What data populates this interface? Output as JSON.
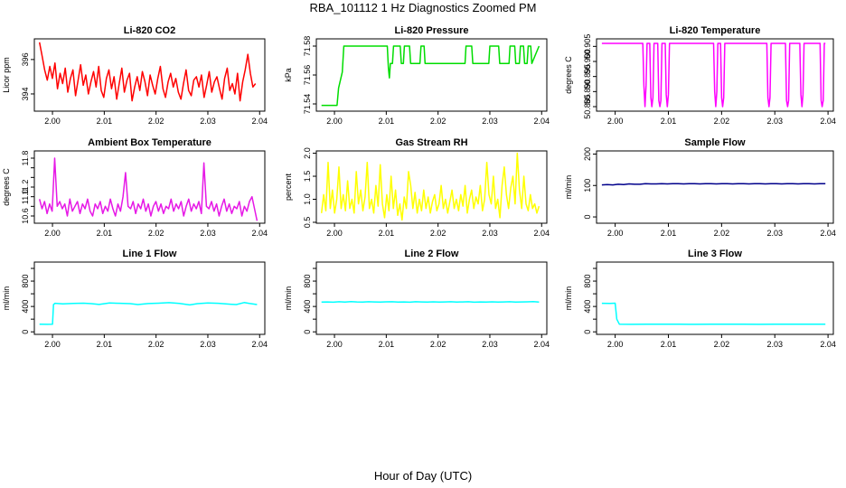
{
  "figure": {
    "title": "RBA_101112  1 Hz Diagnostics Zoomed PM",
    "xlabel": "Hour of Day (UTC)"
  },
  "chart_data": [
    {
      "type": "line",
      "title": "Li-820 CO2",
      "ylabel": "Licor ppm",
      "color": "#ff0000",
      "xlim": [
        1.9965,
        2.041
      ],
      "ylim": [
        393.0,
        397.2
      ],
      "xticks": [
        2.0,
        2.01,
        2.02,
        2.03,
        2.04
      ],
      "xtick_labels": [
        "2.00",
        "2.01",
        "2.02",
        "2.03",
        "2.04"
      ],
      "yticks": [
        394,
        396
      ],
      "ytick_labels": [
        "394",
        "396"
      ],
      "x_start": 1.9975,
      "x_end": 2.0392,
      "y": [
        397.0,
        396.2,
        395.4,
        394.8,
        395.6,
        394.9,
        395.8,
        394.3,
        395.2,
        394.6,
        395.5,
        394.1,
        394.9,
        395.4,
        393.9,
        394.8,
        395.7,
        394.5,
        395.1,
        394.0,
        394.7,
        395.3,
        394.4,
        395.6,
        394.2,
        393.8,
        394.9,
        395.4,
        394.3,
        395.0,
        393.7,
        394.6,
        395.5,
        394.1,
        394.8,
        395.2,
        393.6,
        394.4,
        395.0,
        394.2,
        395.3,
        394.7,
        393.9,
        395.1,
        394.5,
        394.0,
        394.9,
        395.6,
        394.3,
        393.8,
        394.7,
        395.2,
        394.4,
        394.9,
        394.1,
        393.7,
        394.6,
        395.4,
        394.2,
        393.9,
        394.8,
        395.0,
        394.4,
        395.1,
        393.8,
        394.5,
        395.3,
        394.1,
        394.7,
        395.0,
        394.3,
        393.7,
        394.9,
        395.5,
        394.2,
        394.6,
        394.0,
        395.2,
        393.6,
        394.7,
        395.4,
        396.3,
        395.2,
        394.4,
        394.6
      ]
    },
    {
      "type": "line",
      "title": "Li-820 Pressure",
      "ylabel": "kPa",
      "color": "#00dd00",
      "xlim": [
        1.9965,
        2.041
      ],
      "ylim": [
        71.535,
        71.585
      ],
      "xticks": [
        2.0,
        2.01,
        2.02,
        2.03,
        2.04
      ],
      "xtick_labels": [
        "2.00",
        "2.01",
        "2.02",
        "2.03",
        "2.04"
      ],
      "yticks": [
        71.54,
        71.56,
        71.58
      ],
      "ytick_labels": [
        "71.54",
        "71.56",
        "71.58"
      ],
      "x": [
        1.9975,
        2.0005,
        2.0008,
        2.0015,
        2.0018,
        2.0102,
        2.0104,
        2.0106,
        2.0108,
        2.0112,
        2.0114,
        2.0127,
        2.0129,
        2.0133,
        2.0135,
        2.0145,
        2.0147,
        2.0165,
        2.0167,
        2.0173,
        2.0175,
        2.0252,
        2.0254,
        2.0265,
        2.0267,
        2.0298,
        2.03,
        2.0317,
        2.0319,
        2.0337,
        2.0339,
        2.0348,
        2.035,
        2.0357,
        2.0359,
        2.0365,
        2.0367,
        2.0372,
        2.0374,
        2.0379,
        2.0381,
        2.0395
      ],
      "y": [
        71.539,
        71.539,
        71.551,
        71.562,
        71.58,
        71.58,
        71.565,
        71.558,
        71.568,
        71.568,
        71.58,
        71.58,
        71.568,
        71.568,
        71.58,
        71.58,
        71.568,
        71.568,
        71.58,
        71.58,
        71.568,
        71.568,
        71.58,
        71.58,
        71.568,
        71.568,
        71.58,
        71.58,
        71.568,
        71.568,
        71.58,
        71.58,
        71.568,
        71.568,
        71.58,
        71.58,
        71.568,
        71.568,
        71.58,
        71.58,
        71.568,
        71.58
      ]
    },
    {
      "type": "line",
      "title": "Li-820 Temperature",
      "ylabel": "degrees C",
      "color": "#ff00ff",
      "xlim": [
        1.9965,
        2.041
      ],
      "ylim": [
        50.8835,
        50.9075
      ],
      "xticks": [
        2.0,
        2.01,
        2.02,
        2.03,
        2.04
      ],
      "xtick_labels": [
        "2.00",
        "2.01",
        "2.02",
        "2.03",
        "2.04"
      ],
      "yticks": [
        50.885,
        50.89,
        50.895,
        50.9,
        50.905
      ],
      "ytick_labels": [
        "50.885",
        "50.890",
        "50.895",
        "50.900",
        "50.905"
      ],
      "x": [
        1.9975,
        2.0052,
        2.0054,
        2.0056,
        2.0058,
        2.006,
        2.0062,
        2.0065,
        2.0067,
        2.0069,
        2.0071,
        2.0073,
        2.0075,
        2.008,
        2.0082,
        2.0084,
        2.0086,
        2.0088,
        2.009,
        2.0094,
        2.0096,
        2.0098,
        2.01,
        2.0102,
        2.0104,
        2.0185,
        2.0187,
        2.0189,
        2.0191,
        2.0193,
        2.0195,
        2.0198,
        2.02,
        2.0202,
        2.0204,
        2.0206,
        2.0208,
        2.0285,
        2.0287,
        2.0289,
        2.0291,
        2.0293,
        2.0295,
        2.032,
        2.0322,
        2.0324,
        2.0326,
        2.0328,
        2.033,
        2.0347,
        2.0349,
        2.0351,
        2.0353,
        2.0355,
        2.0357,
        2.0385,
        2.0387,
        2.0389,
        2.0391,
        2.0393,
        2.0395
      ],
      "y": [
        50.906,
        50.906,
        50.892,
        50.885,
        50.892,
        50.906,
        50.906,
        50.906,
        50.888,
        50.885,
        50.888,
        50.906,
        50.906,
        50.906,
        50.887,
        50.885,
        50.887,
        50.906,
        50.906,
        50.906,
        50.889,
        50.885,
        50.889,
        50.906,
        50.906,
        50.906,
        50.89,
        50.885,
        50.89,
        50.906,
        50.906,
        50.906,
        50.888,
        50.885,
        50.888,
        50.906,
        50.906,
        50.906,
        50.888,
        50.885,
        50.888,
        50.906,
        50.906,
        50.906,
        50.887,
        50.885,
        50.887,
        50.906,
        50.906,
        50.906,
        50.889,
        50.885,
        50.889,
        50.906,
        50.906,
        50.906,
        50.887,
        50.885,
        50.887,
        50.906,
        50.906
      ]
    },
    {
      "type": "line",
      "title": "Ambient Box Temperature",
      "ylabel": "degrees C",
      "color": "#e619e6",
      "xlim": [
        1.9965,
        2.041
      ],
      "ylim": [
        10.45,
        11.95
      ],
      "xticks": [
        2.0,
        2.01,
        2.02,
        2.03,
        2.04
      ],
      "xtick_labels": [
        "2.00",
        "2.01",
        "2.02",
        "2.03",
        "2.04"
      ],
      "yticks": [
        10.6,
        10.8,
        11.0,
        11.2,
        11.4,
        11.6,
        11.8
      ],
      "ytick_labels": [
        "10.6",
        "",
        "11.0",
        "11.2",
        "",
        "",
        "11.8"
      ],
      "x_start": 1.9975,
      "x_end": 2.0395,
      "y": [
        10.95,
        10.75,
        10.9,
        10.65,
        10.85,
        10.7,
        11.8,
        10.8,
        10.9,
        10.75,
        10.85,
        10.6,
        10.95,
        10.7,
        10.8,
        10.9,
        10.65,
        10.85,
        10.75,
        10.95,
        10.7,
        10.6,
        10.85,
        10.75,
        10.9,
        10.65,
        10.8,
        10.7,
        10.95,
        10.75,
        10.6,
        10.85,
        10.7,
        11.0,
        11.5,
        10.8,
        10.75,
        10.9,
        10.65,
        10.85,
        10.75,
        10.95,
        10.7,
        10.85,
        10.6,
        10.8,
        10.9,
        10.7,
        10.85,
        10.65,
        10.8,
        10.75,
        10.95,
        10.7,
        10.85,
        10.75,
        10.9,
        10.6,
        10.8,
        10.95,
        10.7,
        10.85,
        10.75,
        10.9,
        10.65,
        11.7,
        10.8,
        10.75,
        10.9,
        10.7,
        10.85,
        10.6,
        10.8,
        10.95,
        10.7,
        10.85,
        10.65,
        10.8,
        10.75,
        10.9,
        10.6,
        10.8,
        10.7,
        10.9,
        11.0,
        10.75,
        10.5
      ]
    },
    {
      "type": "line",
      "title": "Gas Stream RH",
      "ylabel": "percent",
      "color": "#ffff00",
      "xlim": [
        1.9965,
        2.041
      ],
      "ylim": [
        0.48,
        2.05
      ],
      "xticks": [
        2.0,
        2.01,
        2.02,
        2.03,
        2.04
      ],
      "xtick_labels": [
        "2.00",
        "2.01",
        "2.02",
        "2.03",
        "2.04"
      ],
      "yticks": [
        0.5,
        1.0,
        1.5,
        2.0
      ],
      "ytick_labels": [
        "0.5",
        "1.0",
        "1.5",
        "2.0"
      ],
      "x_start": 1.9975,
      "x_end": 2.0395,
      "y": [
        0.7,
        1.1,
        0.75,
        1.8,
        0.8,
        1.2,
        0.7,
        1.0,
        1.7,
        0.8,
        1.1,
        0.75,
        1.4,
        0.8,
        1.0,
        0.7,
        1.6,
        0.9,
        1.2,
        0.75,
        1.05,
        1.8,
        0.8,
        1.0,
        0.7,
        1.3,
        0.85,
        1.75,
        0.9,
        0.6,
        1.1,
        0.75,
        1.5,
        0.8,
        1.2,
        0.65,
        0.9,
        0.55,
        1.05,
        0.8,
        1.6,
        1.3,
        0.8,
        1.15,
        0.7,
        1.0,
        0.75,
        1.2,
        0.8,
        1.05,
        0.7,
        0.95,
        1.1,
        0.75,
        0.9,
        1.3,
        0.8,
        1.0,
        0.7,
        0.95,
        1.2,
        0.8,
        1.0,
        0.75,
        1.1,
        0.85,
        1.3,
        0.7,
        1.0,
        1.2,
        0.8,
        1.05,
        0.9,
        1.3,
        0.75,
        1.0,
        1.8,
        1.1,
        0.9,
        1.5,
        0.8,
        1.0,
        0.6,
        1.3,
        1.7,
        1.1,
        0.8,
        1.25,
        1.5,
        0.9,
        2.0,
        1.2,
        0.8,
        1.5,
        0.9,
        0.75,
        1.1,
        0.8,
        0.9,
        0.7,
        0.85
      ]
    },
    {
      "type": "line",
      "title": "Sample Flow",
      "ylabel": "ml/min",
      "color": "#00008b",
      "xlim": [
        1.9965,
        2.041
      ],
      "ylim": [
        -20,
        210
      ],
      "xticks": [
        2.0,
        2.01,
        2.02,
        2.03,
        2.04
      ],
      "xtick_labels": [
        "2.00",
        "2.01",
        "2.02",
        "2.03",
        "2.04"
      ],
      "yticks": [
        0,
        100,
        200
      ],
      "ytick_labels": [
        "0",
        "100",
        "200"
      ],
      "x_start": 1.9975,
      "x_end": 2.0395,
      "y": [
        102,
        103,
        102,
        104,
        103,
        105,
        104,
        104,
        106,
        105,
        105,
        106,
        105,
        106,
        106,
        105,
        106,
        106,
        105,
        106,
        106,
        105,
        106,
        106,
        105,
        106,
        106,
        105,
        106,
        106,
        105,
        106,
        106,
        105,
        106,
        106,
        105,
        106,
        106,
        105,
        106,
        106
      ]
    },
    {
      "type": "line",
      "title": "Line 1 Flow",
      "ylabel": "ml/min",
      "color": "#00ffff",
      "xlim": [
        1.9965,
        2.041
      ],
      "ylim": [
        -40,
        1100
      ],
      "xticks": [
        2.0,
        2.01,
        2.02,
        2.03,
        2.04
      ],
      "xtick_labels": [
        "2.00",
        "2.01",
        "2.02",
        "2.03",
        "2.04"
      ],
      "yticks": [
        0,
        200,
        400,
        600,
        800,
        1000
      ],
      "ytick_labels": [
        "0",
        "",
        "400",
        "",
        "800",
        ""
      ],
      "x": [
        1.9975,
        1.999,
        2.0,
        2.0002,
        2.0005,
        2.002,
        2.004,
        2.006,
        2.0075,
        2.009,
        2.011,
        2.013,
        2.015,
        2.0165,
        2.0185,
        2.0205,
        2.0225,
        2.0245,
        2.0265,
        2.028,
        2.03,
        2.032,
        2.034,
        2.0355,
        2.037,
        2.038,
        2.0395
      ],
      "y": [
        120,
        118,
        120,
        430,
        450,
        440,
        448,
        452,
        445,
        432,
        455,
        450,
        445,
        430,
        446,
        452,
        460,
        448,
        425,
        445,
        455,
        450,
        438,
        430,
        462,
        448,
        430
      ]
    },
    {
      "type": "line",
      "title": "Line 2 Flow",
      "ylabel": "ml/min",
      "color": "#00ffff",
      "xlim": [
        1.9965,
        2.041
      ],
      "ylim": [
        -40,
        1100
      ],
      "xticks": [
        2.0,
        2.01,
        2.02,
        2.03,
        2.04
      ],
      "xtick_labels": [
        "2.00",
        "2.01",
        "2.02",
        "2.03",
        "2.04"
      ],
      "yticks": [
        0,
        200,
        400,
        600,
        800,
        1000
      ],
      "ytick_labels": [
        "0",
        "",
        "400",
        "",
        "800",
        ""
      ],
      "x_start": 1.9975,
      "x_end": 2.0395,
      "y": [
        470,
        472,
        468,
        474,
        470,
        476,
        472,
        470,
        474,
        471,
        469,
        473,
        475,
        470,
        472,
        468,
        474,
        471,
        470,
        473,
        469,
        472,
        475,
        470,
        471,
        474,
        468,
        472,
        470,
        473,
        469,
        472,
        474,
        470,
        471,
        473,
        476,
        470
      ]
    },
    {
      "type": "line",
      "title": "Line 3 Flow",
      "ylabel": "ml/min",
      "color": "#00ffff",
      "xlim": [
        1.9965,
        2.041
      ],
      "ylim": [
        -40,
        1100
      ],
      "xticks": [
        2.0,
        2.01,
        2.02,
        2.03,
        2.04
      ],
      "xtick_labels": [
        "2.00",
        "2.01",
        "2.02",
        "2.03",
        "2.04"
      ],
      "yticks": [
        0,
        200,
        400,
        600,
        800,
        1000
      ],
      "ytick_labels": [
        "0",
        "",
        "400",
        "",
        "800",
        ""
      ],
      "x": [
        1.9975,
        1.999,
        2.0,
        2.0003,
        2.0008,
        2.003,
        2.006,
        2.009,
        2.012,
        2.015,
        2.018,
        2.021,
        2.024,
        2.027,
        2.03,
        2.033,
        2.036,
        2.0395
      ],
      "y": [
        450,
        448,
        452,
        200,
        120,
        118,
        120,
        119,
        121,
        118,
        120,
        119,
        121,
        118,
        120,
        119,
        121,
        120
      ]
    }
  ]
}
